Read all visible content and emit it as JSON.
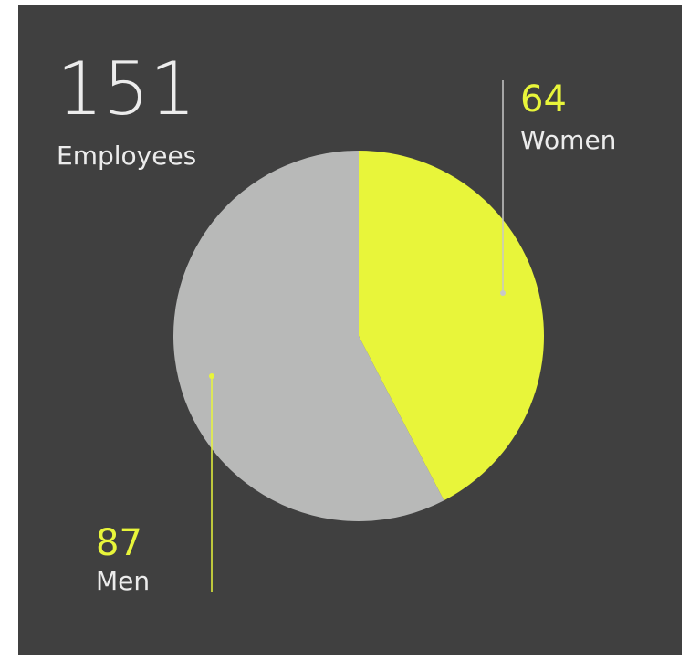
{
  "chart_data": {
    "type": "pie",
    "total": 151,
    "total_label": "Employees",
    "categories": [
      "Women",
      "Men"
    ],
    "values": [
      64,
      87
    ],
    "colors": [
      "#e8f53a",
      "#b8b9b8"
    ],
    "line_colors": [
      "#c8c8c8",
      "#e8f53a"
    ],
    "number_color": "#e8f53a",
    "background": "#404040"
  }
}
